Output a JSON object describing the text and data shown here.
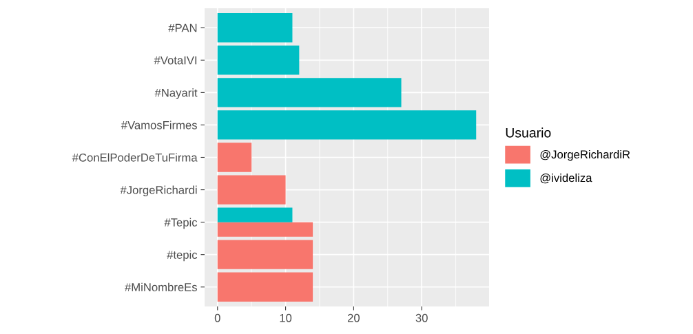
{
  "chart_data": {
    "type": "bar",
    "orientation": "horizontal",
    "categories": [
      "#PAN",
      "#VotaIVI",
      "#Nayarit",
      "#VamosFirmes",
      "#ConElPoderDeTuFirma",
      "#JorgeRichardi",
      "#Tepic",
      "#tepic",
      "#MiNombreEs"
    ],
    "series": [
      {
        "name": "@JorgeRichardiR",
        "color": "#f8766d",
        "values": [
          null,
          null,
          null,
          null,
          5,
          10,
          14,
          14,
          14
        ]
      },
      {
        "name": "@ivideliza",
        "color": "#00bfc4",
        "values": [
          11,
          12,
          27,
          38,
          null,
          null,
          11,
          null,
          null
        ]
      }
    ],
    "legend_title": "Usuario",
    "legend": "right",
    "grid": true,
    "xlim": [
      -1.9,
      39.9
    ],
    "xticks": [
      0,
      10,
      20,
      30
    ]
  }
}
